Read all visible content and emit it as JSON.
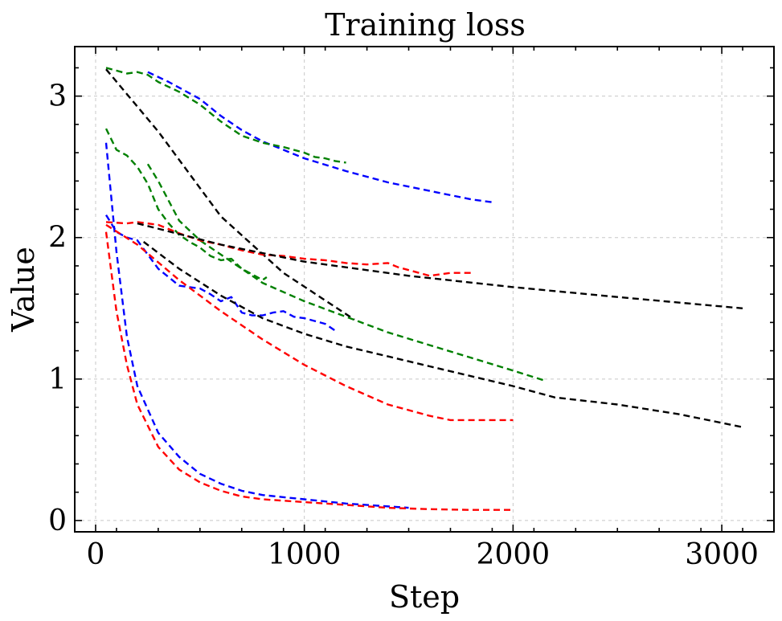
{
  "chart_data": {
    "type": "line",
    "title": "Training loss",
    "xlabel": "Step",
    "ylabel": "Value",
    "xlim": [
      -100,
      3250
    ],
    "ylim": [
      -0.08,
      3.35
    ],
    "xticks": [
      0,
      1000,
      2000,
      3000
    ],
    "yticks": [
      0,
      1,
      2,
      3
    ],
    "xticklabels": [
      "0",
      "1000",
      "2000",
      "3000"
    ],
    "yticklabels": [
      "0",
      "1",
      "2",
      "3"
    ],
    "grid": true,
    "line_style": "dashed",
    "series": [
      {
        "color": "#0000ff",
        "x": [
          250,
          350,
          500,
          600,
          700,
          800,
          900,
          1000,
          1200,
          1400,
          1600,
          1800,
          1900
        ],
        "y": [
          3.17,
          3.1,
          2.98,
          2.86,
          2.76,
          2.68,
          2.62,
          2.56,
          2.47,
          2.39,
          2.33,
          2.27,
          2.25
        ]
      },
      {
        "color": "#008000",
        "x": [
          50,
          100,
          150,
          200,
          250,
          300,
          400,
          500,
          600,
          700,
          800,
          900,
          1000,
          1050,
          1100,
          1150,
          1200
        ],
        "y": [
          3.2,
          3.18,
          3.16,
          3.17,
          3.15,
          3.1,
          3.03,
          2.94,
          2.82,
          2.72,
          2.67,
          2.64,
          2.6,
          2.57,
          2.56,
          2.54,
          2.53
        ]
      },
      {
        "color": "#000000",
        "x": [
          50,
          300,
          600,
          900,
          1240
        ],
        "y": [
          3.19,
          2.75,
          2.15,
          1.75,
          1.42
        ]
      },
      {
        "color": "#0000ff",
        "x": [
          50,
          100,
          150,
          200,
          300,
          400,
          500,
          600,
          700,
          800,
          1000,
          1200,
          1500
        ],
        "y": [
          2.67,
          1.9,
          1.3,
          0.95,
          0.62,
          0.45,
          0.33,
          0.26,
          0.21,
          0.18,
          0.15,
          0.12,
          0.09
        ]
      },
      {
        "color": "#008000",
        "x": [
          50,
          100,
          150,
          200,
          250,
          300,
          350,
          400,
          450,
          500,
          550,
          600,
          650,
          700,
          750,
          800,
          820
        ],
        "y": [
          2.77,
          2.62,
          2.58,
          2.5,
          2.38,
          2.2,
          2.1,
          2.02,
          1.97,
          1.93,
          1.87,
          1.84,
          1.85,
          1.78,
          1.74,
          1.7,
          1.72
        ]
      },
      {
        "color": "#008000",
        "x": [
          250,
          300,
          400,
          500,
          600,
          700,
          800,
          1000,
          1200,
          1400,
          1600,
          1800,
          2000,
          2150
        ],
        "y": [
          2.52,
          2.4,
          2.12,
          1.98,
          1.88,
          1.78,
          1.68,
          1.55,
          1.44,
          1.33,
          1.24,
          1.15,
          1.06,
          0.99
        ]
      },
      {
        "color": "#ff0000",
        "x": [
          50,
          150,
          200,
          300,
          400,
          500,
          600,
          700,
          800,
          900,
          1000,
          1100,
          1200,
          1300,
          1400,
          1450,
          1500,
          1550,
          1600,
          1650,
          1700,
          1800
        ],
        "y": [
          2.11,
          2.1,
          2.11,
          2.09,
          2.03,
          1.98,
          1.95,
          1.91,
          1.88,
          1.87,
          1.85,
          1.84,
          1.82,
          1.81,
          1.82,
          1.79,
          1.77,
          1.75,
          1.73,
          1.74,
          1.75,
          1.75
        ]
      },
      {
        "color": "#000000",
        "x": [
          200,
          600,
          1000,
          1500,
          2000,
          2500,
          3100
        ],
        "y": [
          2.1,
          1.95,
          1.83,
          1.73,
          1.65,
          1.58,
          1.5
        ]
      },
      {
        "color": "#0000ff",
        "x": [
          50,
          100,
          150,
          200,
          250,
          300,
          350,
          400,
          450,
          500,
          550,
          600,
          650,
          700,
          750,
          800,
          850,
          900,
          950,
          1000,
          1050,
          1100,
          1150
        ],
        "y": [
          2.16,
          2.04,
          2.0,
          1.98,
          1.88,
          1.78,
          1.72,
          1.66,
          1.65,
          1.64,
          1.6,
          1.55,
          1.58,
          1.47,
          1.45,
          1.45,
          1.47,
          1.48,
          1.44,
          1.43,
          1.41,
          1.39,
          1.34
        ]
      },
      {
        "color": "#000000",
        "x": [
          230,
          400,
          600,
          800,
          1000,
          1200,
          1400,
          1600,
          1800,
          2000,
          2200,
          2500,
          2800,
          3100
        ],
        "y": [
          1.97,
          1.78,
          1.59,
          1.43,
          1.32,
          1.23,
          1.16,
          1.09,
          1.02,
          0.95,
          0.87,
          0.82,
          0.75,
          0.66
        ]
      },
      {
        "color": "#ff0000",
        "x": [
          50,
          200,
          400,
          600,
          800,
          1000,
          1200,
          1400,
          1600,
          1700,
          1800,
          2000
        ],
        "y": [
          2.09,
          1.95,
          1.7,
          1.48,
          1.28,
          1.1,
          0.95,
          0.82,
          0.74,
          0.71,
          0.71,
          0.71
        ]
      },
      {
        "color": "#ff0000",
        "x": [
          50,
          100,
          150,
          200,
          300,
          400,
          500,
          600,
          700,
          800,
          1000,
          1200,
          1400,
          1600,
          1800,
          2000
        ],
        "y": [
          2.04,
          1.48,
          1.1,
          0.82,
          0.52,
          0.36,
          0.27,
          0.21,
          0.17,
          0.15,
          0.13,
          0.11,
          0.09,
          0.08,
          0.075,
          0.075
        ]
      }
    ]
  }
}
